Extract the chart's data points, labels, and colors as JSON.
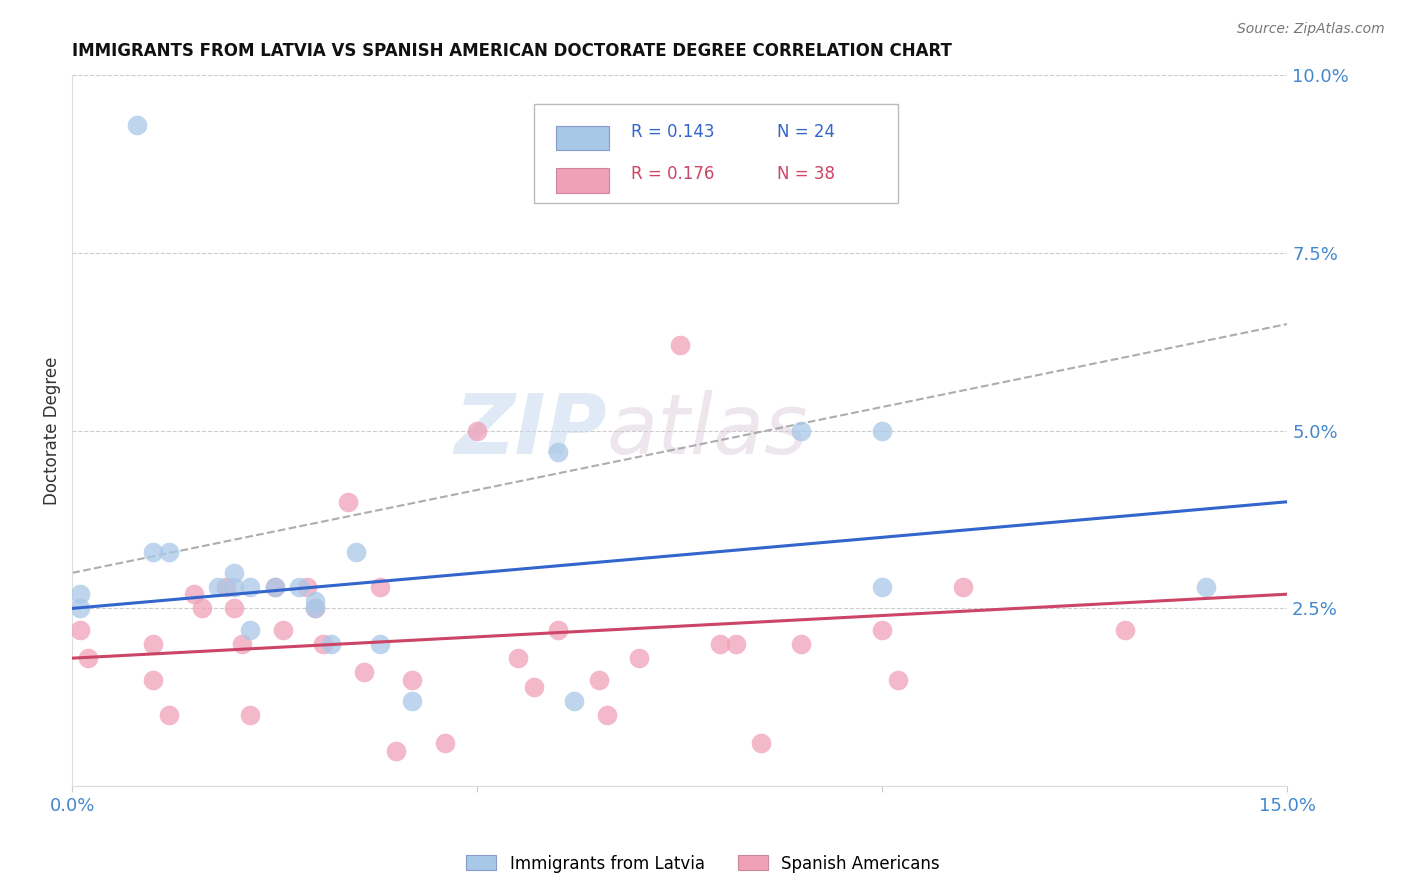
{
  "title": "IMMIGRANTS FROM LATVIA VS SPANISH AMERICAN DOCTORATE DEGREE CORRELATION CHART",
  "source": "Source: ZipAtlas.com",
  "ylabel_label": "Doctorate Degree",
  "x_min": 0.0,
  "x_max": 0.15,
  "y_min": 0.0,
  "y_max": 0.1,
  "y_ticks_right": [
    0.0,
    0.025,
    0.05,
    0.075,
    0.1
  ],
  "y_tick_labels_right": [
    "",
    "2.5%",
    "5.0%",
    "7.5%",
    "10.0%"
  ],
  "legend_blue_R": "0.143",
  "legend_blue_N": "24",
  "legend_pink_R": "0.176",
  "legend_pink_N": "38",
  "blue_color": "#a8c8e8",
  "pink_color": "#f0a0b8",
  "blue_line_color": "#3366cc",
  "pink_line_color": "#cc4466",
  "dashed_line_color": "#999999",
  "background_color": "#ffffff",
  "grid_color": "#cccccc",
  "blue_scatter_x": [
    0.008,
    0.001,
    0.001,
    0.01,
    0.012,
    0.018,
    0.02,
    0.022,
    0.02,
    0.022,
    0.025,
    0.028,
    0.03,
    0.03,
    0.032,
    0.035,
    0.038,
    0.042,
    0.06,
    0.062,
    0.09,
    0.1,
    0.1,
    0.14
  ],
  "blue_scatter_y": [
    0.093,
    0.027,
    0.025,
    0.033,
    0.033,
    0.028,
    0.028,
    0.028,
    0.03,
    0.022,
    0.028,
    0.028,
    0.026,
    0.025,
    0.02,
    0.033,
    0.02,
    0.012,
    0.047,
    0.012,
    0.05,
    0.028,
    0.05,
    0.028
  ],
  "pink_scatter_x": [
    0.001,
    0.002,
    0.01,
    0.01,
    0.012,
    0.015,
    0.016,
    0.019,
    0.02,
    0.021,
    0.022,
    0.025,
    0.026,
    0.029,
    0.03,
    0.031,
    0.034,
    0.036,
    0.038,
    0.04,
    0.042,
    0.046,
    0.05,
    0.055,
    0.057,
    0.06,
    0.065,
    0.066,
    0.07,
    0.075,
    0.08,
    0.082,
    0.085,
    0.09,
    0.1,
    0.102,
    0.11,
    0.13
  ],
  "pink_scatter_y": [
    0.022,
    0.018,
    0.02,
    0.015,
    0.01,
    0.027,
    0.025,
    0.028,
    0.025,
    0.02,
    0.01,
    0.028,
    0.022,
    0.028,
    0.025,
    0.02,
    0.04,
    0.016,
    0.028,
    0.005,
    0.015,
    0.006,
    0.05,
    0.018,
    0.014,
    0.022,
    0.015,
    0.01,
    0.018,
    0.062,
    0.02,
    0.02,
    0.006,
    0.02,
    0.022,
    0.015,
    0.028,
    0.022
  ],
  "blue_line_x0": 0.0,
  "blue_line_y0": 0.025,
  "blue_line_x1": 0.15,
  "blue_line_y1": 0.04,
  "pink_line_x0": 0.0,
  "pink_line_y0": 0.018,
  "pink_line_x1": 0.15,
  "pink_line_y1": 0.027,
  "dashed_line_x0": 0.0,
  "dashed_line_y0": 0.03,
  "dashed_line_x1": 0.15,
  "dashed_line_y1": 0.065,
  "watermark_text1": "ZIP",
  "watermark_text2": "atlas"
}
